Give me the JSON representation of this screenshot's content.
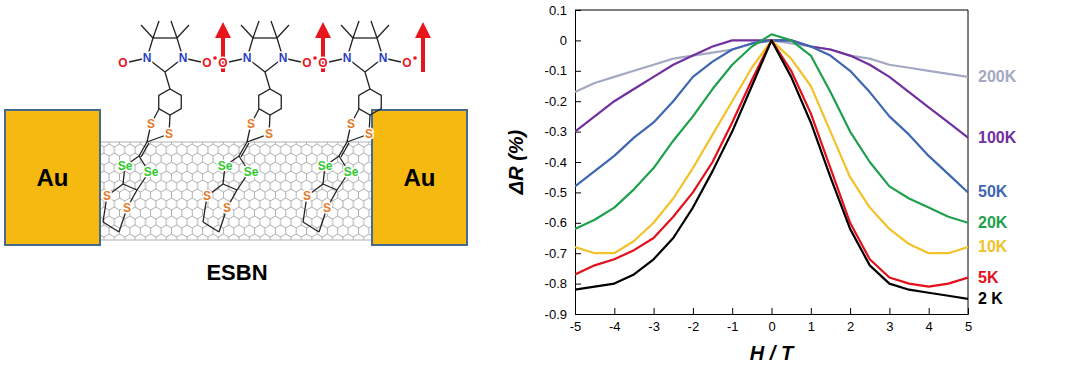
{
  "diagram": {
    "electrodes": [
      "Au",
      "Au"
    ],
    "label": "ESBN",
    "molecule_count": 3,
    "atoms": {
      "nitrogen": "N",
      "oxygen": "O",
      "sulfur": "S",
      "selenium": "Se"
    }
  },
  "chart_data": {
    "type": "line",
    "x_label": "H / T",
    "y_label": "ΔR (%)",
    "x": [
      -5,
      -4.5,
      -4,
      -3.5,
      -3,
      -2.5,
      -2,
      -1.5,
      -1,
      -0.5,
      0,
      0.5,
      1,
      1.5,
      2,
      2.5,
      3,
      3.5,
      4,
      4.5,
      5
    ],
    "xlim": [
      -5,
      5
    ],
    "xticks": [
      -5,
      -4,
      -3,
      -2,
      -1,
      0,
      1,
      2,
      3,
      4,
      5
    ],
    "ylim": [
      -0.9,
      0.1
    ],
    "yticks": [
      -0.9,
      -0.8,
      -0.7,
      -0.6,
      -0.5,
      -0.4,
      -0.3,
      -0.2,
      -0.1,
      0,
      0.1
    ],
    "grid": false,
    "legend": "right",
    "series": [
      {
        "name": "200K",
        "color": "#a3a9c2",
        "values": [
          -0.17,
          -0.14,
          -0.12,
          -0.1,
          -0.08,
          -0.06,
          -0.05,
          -0.04,
          -0.03,
          -0.01,
          0,
          -0.01,
          -0.02,
          -0.03,
          -0.05,
          -0.06,
          -0.08,
          -0.09,
          -0.1,
          -0.11,
          -0.12
        ]
      },
      {
        "name": "100K",
        "color": "#7030a0",
        "values": [
          -0.3,
          -0.25,
          -0.2,
          -0.16,
          -0.12,
          -0.08,
          -0.05,
          -0.02,
          0,
          0,
          0,
          0,
          -0.02,
          -0.03,
          -0.05,
          -0.08,
          -0.12,
          -0.17,
          -0.22,
          -0.27,
          -0.32
        ]
      },
      {
        "name": "50K",
        "color": "#3f67b1",
        "values": [
          -0.48,
          -0.43,
          -0.38,
          -0.32,
          -0.27,
          -0.2,
          -0.12,
          -0.07,
          -0.03,
          -0.01,
          0,
          0,
          -0.02,
          -0.05,
          -0.1,
          -0.17,
          -0.25,
          -0.31,
          -0.38,
          -0.44,
          -0.5
        ]
      },
      {
        "name": "20K",
        "color": "#1ea04c",
        "values": [
          -0.62,
          -0.59,
          -0.55,
          -0.49,
          -0.42,
          -0.33,
          -0.25,
          -0.16,
          -0.08,
          -0.02,
          0.02,
          0,
          -0.05,
          -0.17,
          -0.3,
          -0.4,
          -0.48,
          -0.52,
          -0.55,
          -0.58,
          -0.6
        ]
      },
      {
        "name": "10K",
        "color": "#f2c22a",
        "values": [
          -0.68,
          -0.7,
          -0.7,
          -0.66,
          -0.6,
          -0.52,
          -0.42,
          -0.31,
          -0.2,
          -0.09,
          0,
          -0.06,
          -0.15,
          -0.3,
          -0.45,
          -0.55,
          -0.62,
          -0.67,
          -0.7,
          -0.7,
          -0.68
        ]
      },
      {
        "name": "5K",
        "color": "#e3101a",
        "values": [
          -0.77,
          -0.74,
          -0.72,
          -0.69,
          -0.65,
          -0.58,
          -0.5,
          -0.4,
          -0.27,
          -0.13,
          0,
          -0.1,
          -0.24,
          -0.42,
          -0.6,
          -0.72,
          -0.78,
          -0.8,
          -0.81,
          -0.8,
          -0.78
        ]
      },
      {
        "name": "2 K",
        "color": "#000000",
        "values": [
          -0.82,
          -0.81,
          -0.8,
          -0.77,
          -0.72,
          -0.65,
          -0.55,
          -0.43,
          -0.3,
          -0.15,
          0,
          -0.12,
          -0.27,
          -0.45,
          -0.62,
          -0.74,
          -0.8,
          -0.82,
          -0.83,
          -0.84,
          -0.85
        ]
      }
    ]
  }
}
